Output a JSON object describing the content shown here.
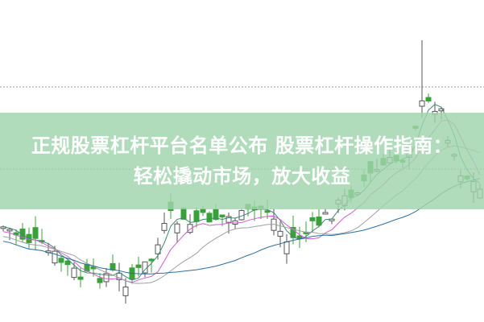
{
  "headline": {
    "line1": "正规股票杠杆平台名单公布 股票杠杆操作指南：",
    "line2": "轻松撬动市场，放大收益"
  },
  "colors": {
    "up_candle": "#ffffff",
    "down_candle": "#3aa03a",
    "banner": "#a0d4ac",
    "ma_lines": [
      "#3c8a6e",
      "#d060d0",
      "#a0a0a0",
      "#2e6ea0"
    ]
  },
  "icons": []
}
